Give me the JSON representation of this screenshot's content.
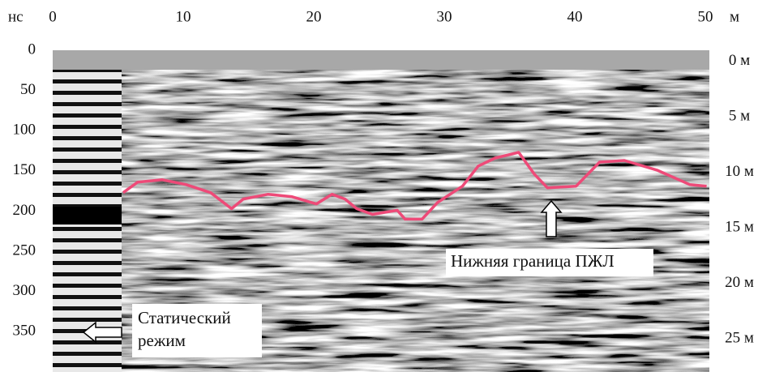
{
  "chart_data": {
    "type": "line",
    "x_unit": "м",
    "y_unit": "нс",
    "xlim": [
      0,
      50
    ],
    "xticks": [
      0,
      10,
      20,
      30,
      40,
      50
    ],
    "ylim": [
      0,
      400
    ],
    "y_inverted": true,
    "yticks": [
      0,
      50,
      100,
      150,
      200,
      250,
      300,
      350
    ],
    "y2lim": [
      -1,
      28
    ],
    "y2_inverted": true,
    "y2ticks": [
      {
        "value": 0,
        "label": "0 м"
      },
      {
        "value": 5,
        "label": "5 м"
      },
      {
        "value": 10,
        "label": "10 м"
      },
      {
        "value": 15,
        "label": "15 м"
      },
      {
        "value": 20,
        "label": "20 м"
      },
      {
        "value": 25,
        "label": "25 м"
      }
    ],
    "grid": false,
    "x": [
      5.4,
      6.5,
      8.4,
      10.2,
      12.1,
      13.7,
      14.6,
      16.5,
      18.3,
      20.2,
      21.4,
      22.4,
      23.3,
      24.5,
      26.4,
      27.0,
      28.3,
      29.5,
      31.4,
      32.6,
      33.9,
      35.7,
      36.9,
      37.9,
      40.1,
      41.9,
      43.8,
      46.3,
      48.8,
      50.1
    ],
    "series": [
      {
        "color": "#ee4a78",
        "values": [
          177,
          164,
          161,
          167,
          177,
          197,
          185,
          179,
          182,
          191,
          179,
          185,
          197,
          204,
          199,
          210,
          210,
          189,
          169,
          144,
          134,
          127,
          154,
          171,
          169,
          139,
          137,
          149,
          167,
          169
        ]
      }
    ],
    "annotations": [
      {
        "lines": [
          "Статический",
          "режим"
        ]
      },
      {
        "lines": [
          "Нижняя граница ПЖЛ"
        ]
      }
    ]
  }
}
